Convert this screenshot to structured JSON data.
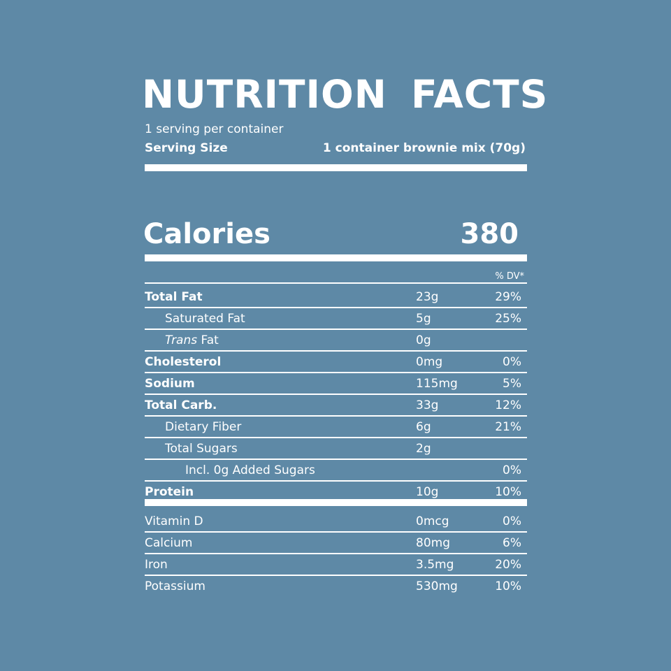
{
  "header": {
    "title": "NUTRITION FACTS",
    "servings": "1 serving per container",
    "serving_size_label": "Serving Size",
    "serving_size_value": "1 container brownie mix (70g)"
  },
  "calories": {
    "label": "Calories",
    "value": "380"
  },
  "dv_header": "% DV*",
  "nutrients": [
    {
      "label": "Total Fat",
      "amount": "23g",
      "dv": "29%",
      "bold": true,
      "indent": 0
    },
    {
      "label": "Saturated Fat",
      "amount": "5g",
      "dv": "25%",
      "bold": false,
      "indent": 1
    },
    {
      "label_em": "Trans",
      "label": "Fat",
      "amount": "0g",
      "bold": false,
      "indent": 1
    },
    {
      "label": "Cholesterol",
      "amount": "0mg",
      "dv": "0%",
      "bold": true,
      "indent": 0
    },
    {
      "label": "Sodium",
      "amount": "115mg",
      "dv": "5%",
      "bold": true,
      "indent": 0
    },
    {
      "label": "Total Carb.",
      "amount": "33g",
      "dv": "12%",
      "bold": true,
      "indent": 0
    },
    {
      "label": "Dietary Fiber",
      "amount": "6g",
      "dv": "21%",
      "bold": false,
      "indent": 1
    },
    {
      "label": "Total Sugars",
      "amount": "2g",
      "bold": false,
      "indent": 1
    },
    {
      "label": "Incl. 0g Added Sugars",
      "dv": "0%",
      "bold": false,
      "indent": 2
    },
    {
      "label": "Protein",
      "amount": "10g",
      "dv": "10%",
      "bold": true,
      "indent": 0
    }
  ],
  "vitamins": [
    {
      "label": "Vitamin D",
      "amount": "0mcg",
      "dv": "0%"
    },
    {
      "label": "Calcium",
      "amount": "80mg",
      "dv": "6%"
    },
    {
      "label": "Iron",
      "amount": "3.5mg",
      "dv": "20%"
    },
    {
      "label": "Potassium",
      "amount": "530mg",
      "dv": "10%"
    }
  ]
}
